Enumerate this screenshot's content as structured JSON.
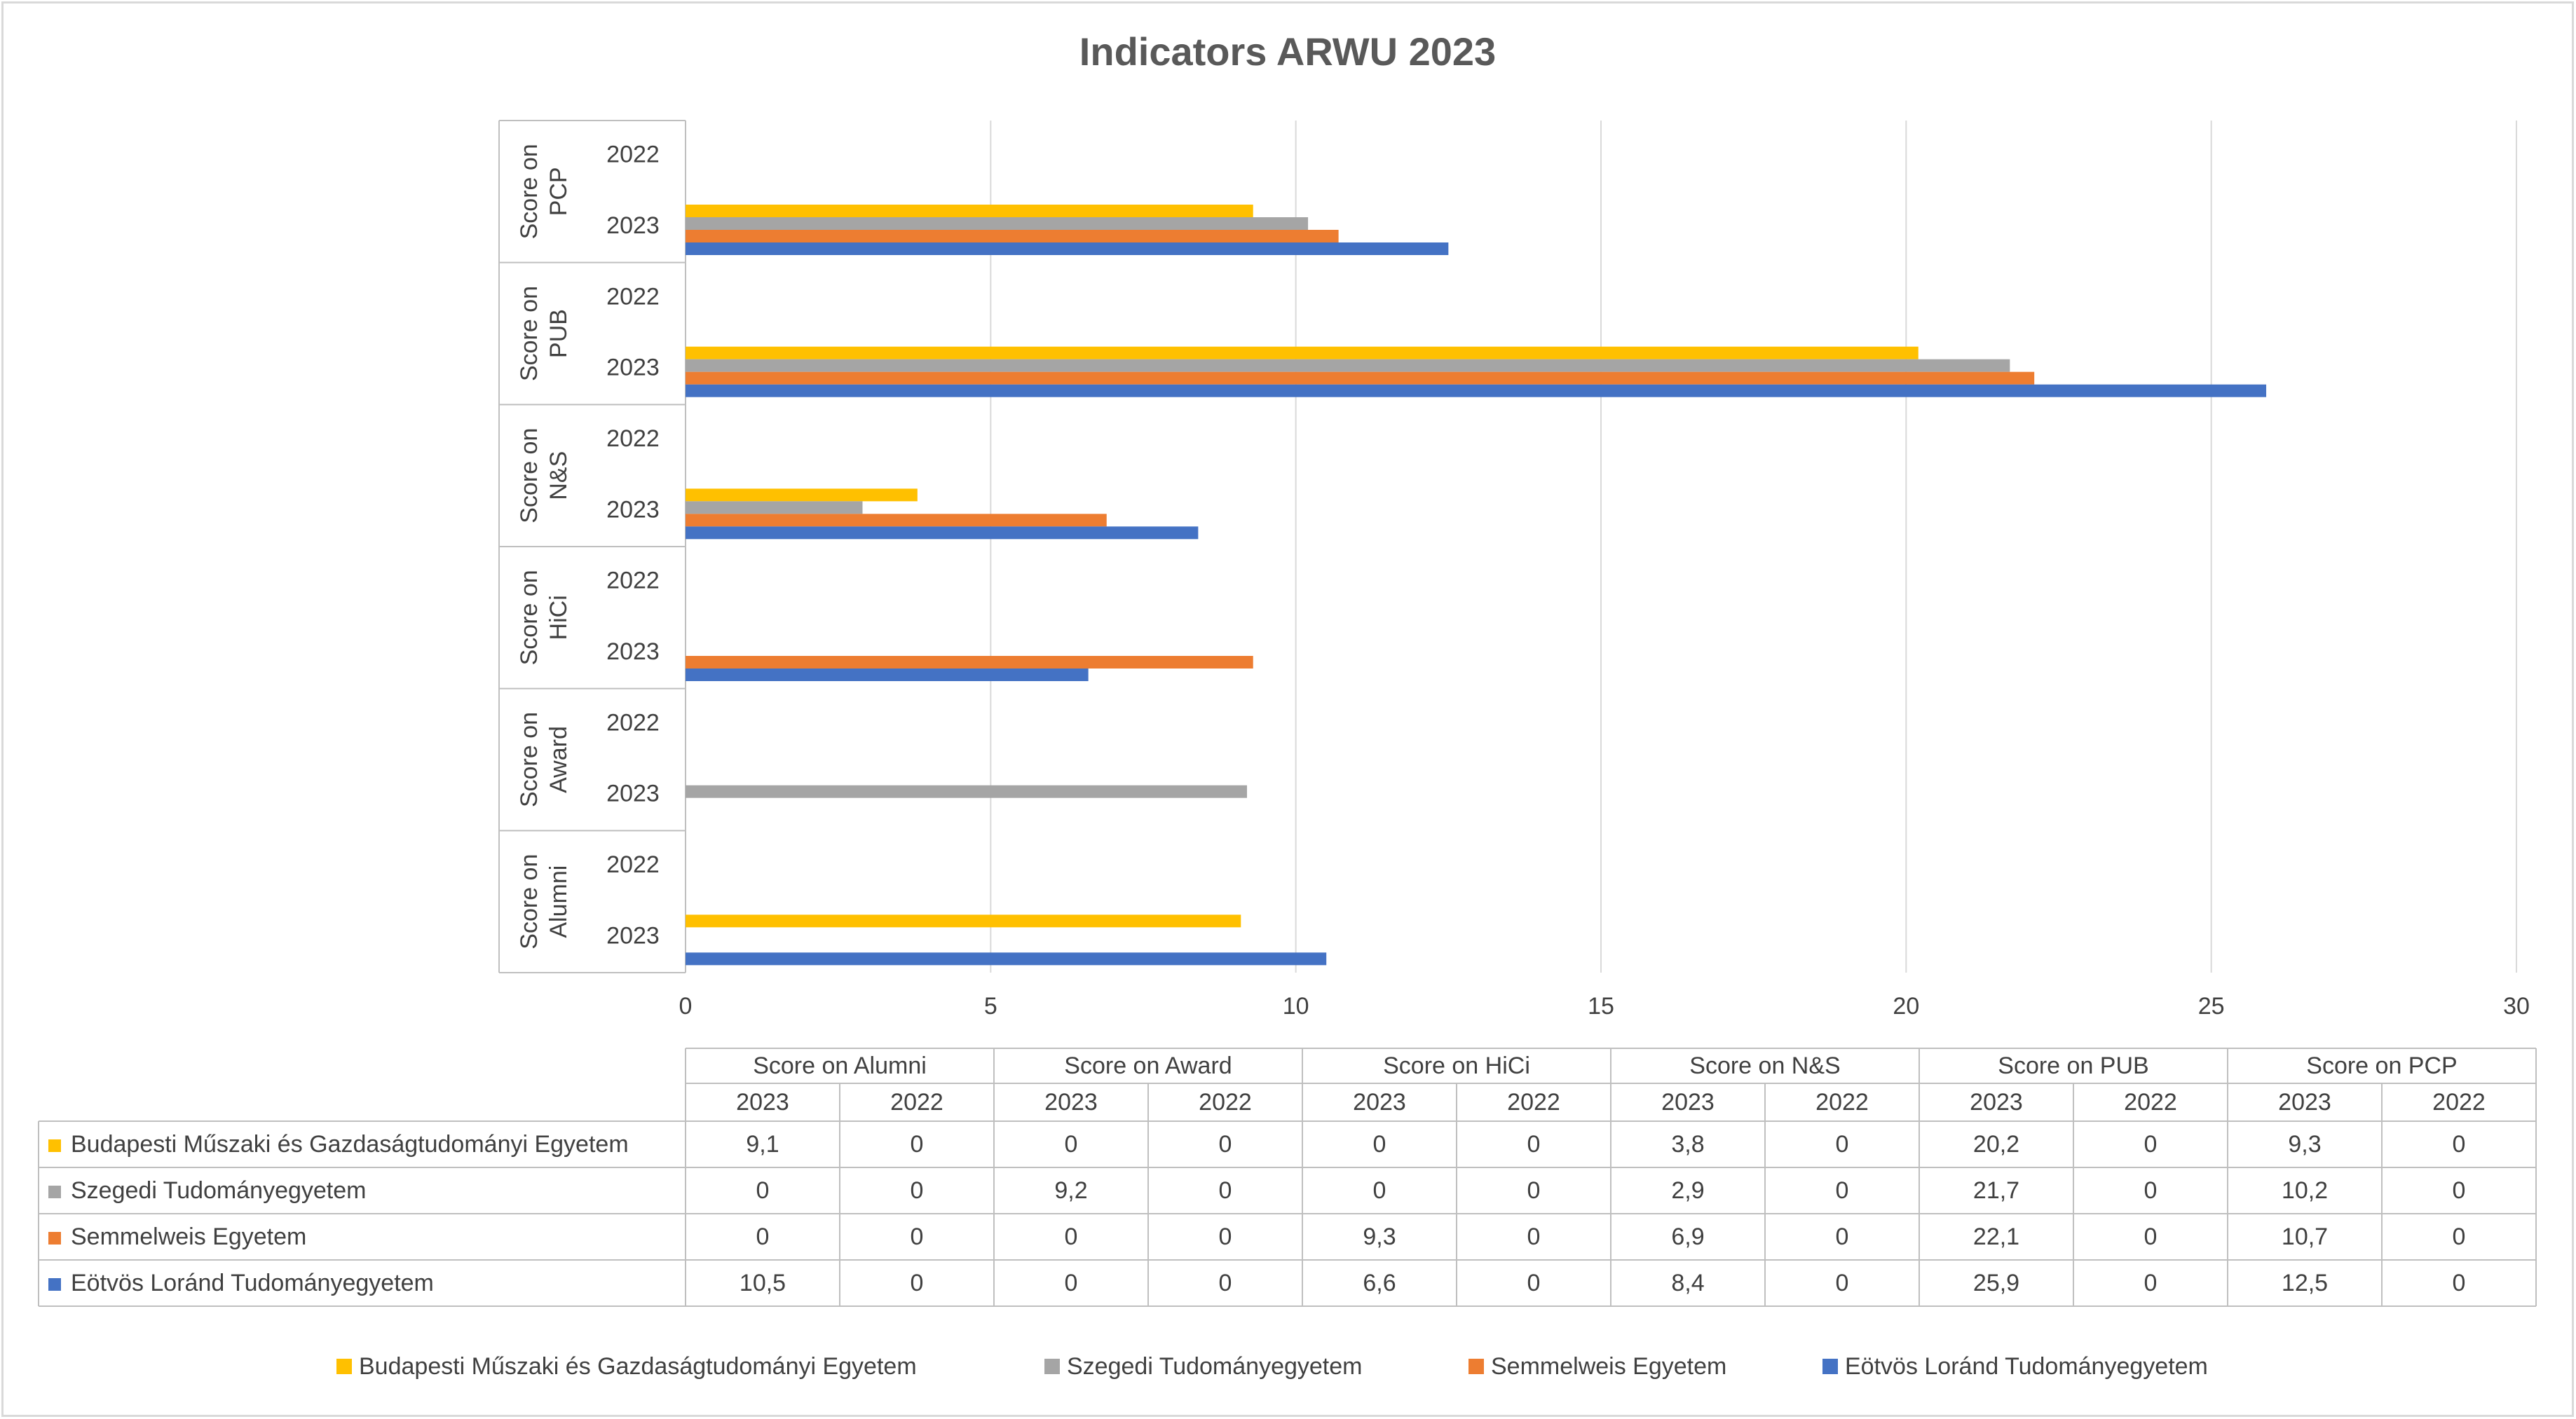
{
  "chart_data": {
    "type": "bar",
    "orientation": "horizontal",
    "title": "Indicators ARWU 2023",
    "groups": [
      "Score on Alumni",
      "Score on Award",
      "Score on HiCi",
      "Score on N&S",
      "Score on PUB",
      "Score on PCP"
    ],
    "years": [
      "2023",
      "2022"
    ],
    "xlim": [
      0,
      30
    ],
    "xticks": [
      0,
      5,
      10,
      15,
      20,
      25,
      30
    ],
    "grid": true,
    "legend_position": "bottom",
    "series": [
      {
        "name": "Budapesti Műszaki és Gazdaságtudományi Egyetem",
        "color": "#FFC000",
        "values": {
          "2023": [
            9.1,
            0,
            0,
            3.8,
            20.2,
            9.3
          ],
          "2022": [
            0,
            0,
            0,
            0,
            0,
            0
          ]
        },
        "labels": [
          "9,1",
          "0",
          "0",
          "0",
          "0",
          "0",
          "3,8",
          "0",
          "20,2",
          "0",
          "9,3",
          "0"
        ]
      },
      {
        "name": "Szegedi Tudományegyetem",
        "color": "#A5A5A5",
        "values": {
          "2023": [
            0,
            9.2,
            0,
            2.9,
            21.7,
            10.2
          ],
          "2022": [
            0,
            0,
            0,
            0,
            0,
            0
          ]
        },
        "labels": [
          "0",
          "0",
          "9,2",
          "0",
          "0",
          "0",
          "2,9",
          "0",
          "21,7",
          "0",
          "10,2",
          "0"
        ]
      },
      {
        "name": "Semmelweis Egyetem",
        "color": "#ED7D31",
        "values": {
          "2023": [
            0,
            0,
            9.3,
            6.9,
            22.1,
            10.7
          ],
          "2022": [
            0,
            0,
            0,
            0,
            0,
            0
          ]
        },
        "labels": [
          "0",
          "0",
          "0",
          "0",
          "9,3",
          "0",
          "6,9",
          "0",
          "22,1",
          "0",
          "10,7",
          "0"
        ]
      },
      {
        "name": "Eötvös Loránd Tudományegyetem",
        "color": "#4472C4",
        "values": {
          "2023": [
            10.5,
            0,
            6.6,
            8.4,
            25.9,
            12.5
          ],
          "2022": [
            0,
            0,
            0,
            0,
            0,
            0
          ]
        },
        "labels": [
          "10,5",
          "0",
          "0",
          "0",
          "6,6",
          "0",
          "8,4",
          "0",
          "25,9",
          "0",
          "12,5",
          "0"
        ]
      }
    ]
  }
}
